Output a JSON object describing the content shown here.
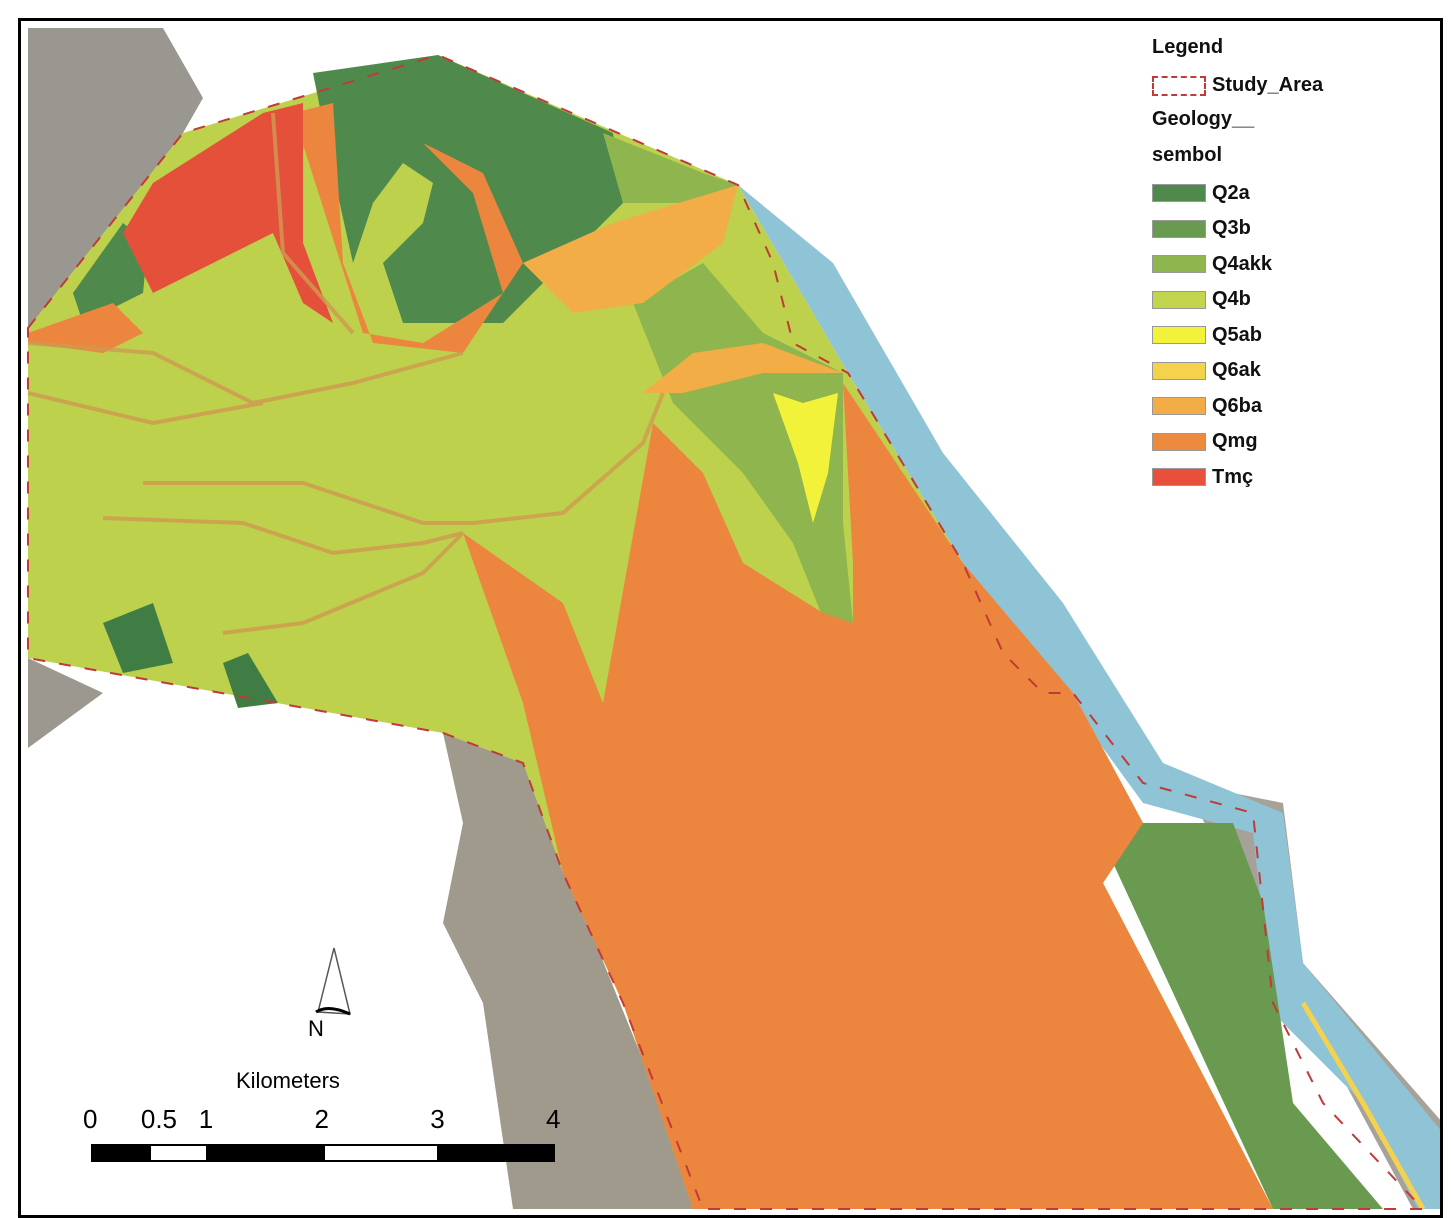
{
  "legend": {
    "title": "Legend",
    "study_area_label": "Study_Area",
    "study_area_color": "#c03a3a",
    "layer_title_line1": "Geology__",
    "layer_title_line2": "sembol",
    "classes": [
      {
        "label": "Q2a",
        "color": "#4f8a4c"
      },
      {
        "label": "Q3b",
        "color": "#6a9a50"
      },
      {
        "label": "Q4akk",
        "color": "#8fb54e"
      },
      {
        "label": "Q4b",
        "color": "#c3d54e"
      },
      {
        "label": "Q5ab",
        "color": "#f2f23a"
      },
      {
        "label": "Q6ak",
        "color": "#f5d24e"
      },
      {
        "label": "Q6ba",
        "color": "#f2ad46"
      },
      {
        "label": "Qmg",
        "color": "#ee8a3e"
      },
      {
        "label": "Tmç",
        "color": "#e8503c"
      }
    ]
  },
  "north_arrow": {
    "label": "N"
  },
  "scale_bar": {
    "units": "Kilometers",
    "ticks": [
      "0",
      "0.5",
      "1",
      "2",
      "3",
      "4"
    ]
  },
  "water_color": "#8fc3d6"
}
